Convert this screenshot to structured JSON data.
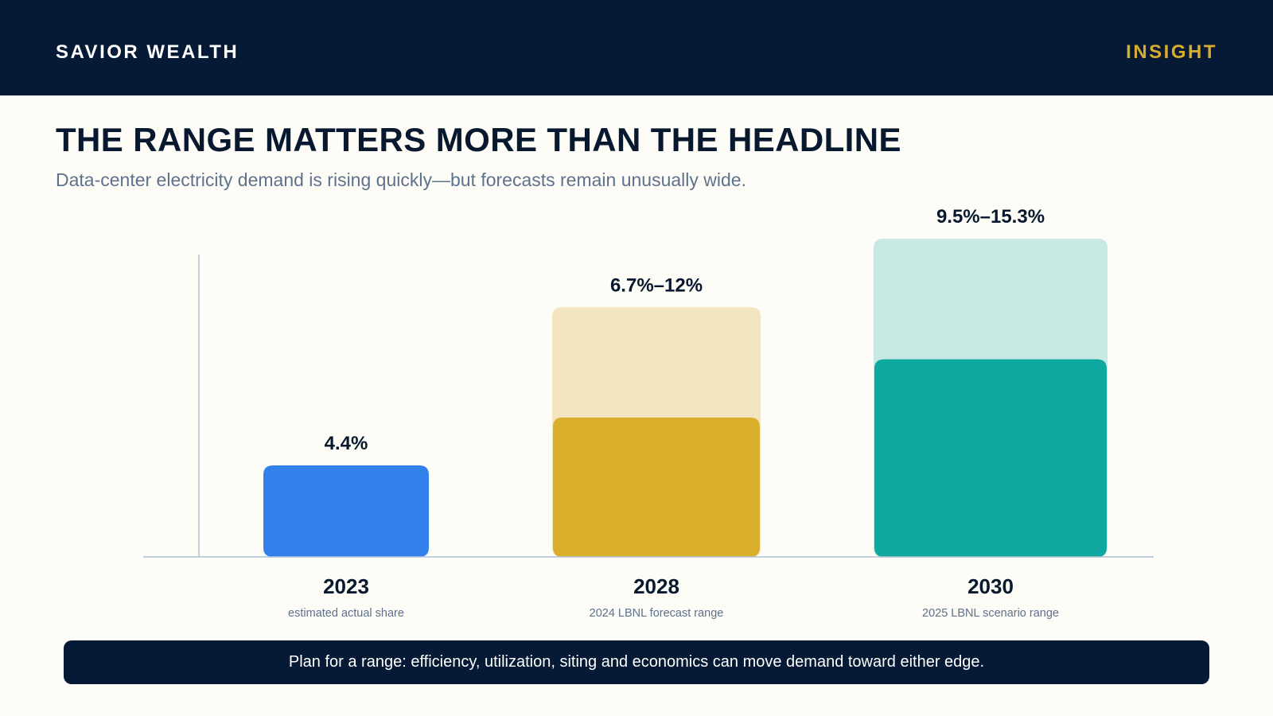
{
  "header": {
    "brand": "SAVIOR WEALTH",
    "section": "INSIGHT"
  },
  "slide": {
    "title": "THE RANGE MATTERS MORE THAN THE HEADLINE",
    "subtitle": "Data-center electricity demand is rising quickly—but forecasts remain unusually wide."
  },
  "chart_data": {
    "type": "bar",
    "categories": [
      "2023",
      "2028",
      "2030"
    ],
    "category_notes": [
      "estimated actual share",
      "2024 LBNL forecast range",
      "2025 LBNL scenario range"
    ],
    "series": [
      {
        "values": [
          4.4,
          6.7,
          9.5
        ]
      },
      {
        "values": [
          null,
          12,
          15.3
        ]
      }
    ],
    "value_labels": [
      "4.4%",
      "6.7%–12%",
      "9.5%–15.3%"
    ],
    "ylabel": "",
    "xlabel": "",
    "ylim": [
      0,
      15.3
    ],
    "grid": false,
    "colors": {
      "solid": [
        "#3280EA",
        "#D9AE2A",
        "#0EA8A0"
      ],
      "range": [
        "#3280EA",
        "#F3E5BF",
        "#C8E8E3"
      ],
      "axis": "#AFC0D6",
      "label": "#08182F",
      "note": "#5E718D"
    }
  },
  "footer": {
    "note": "Plan for a range: efficiency, utilization, siting and economics can move demand toward either edge."
  },
  "theme": {
    "navy": "#061935",
    "gold": "#D8AD2E",
    "background": "#FDFCF6"
  }
}
